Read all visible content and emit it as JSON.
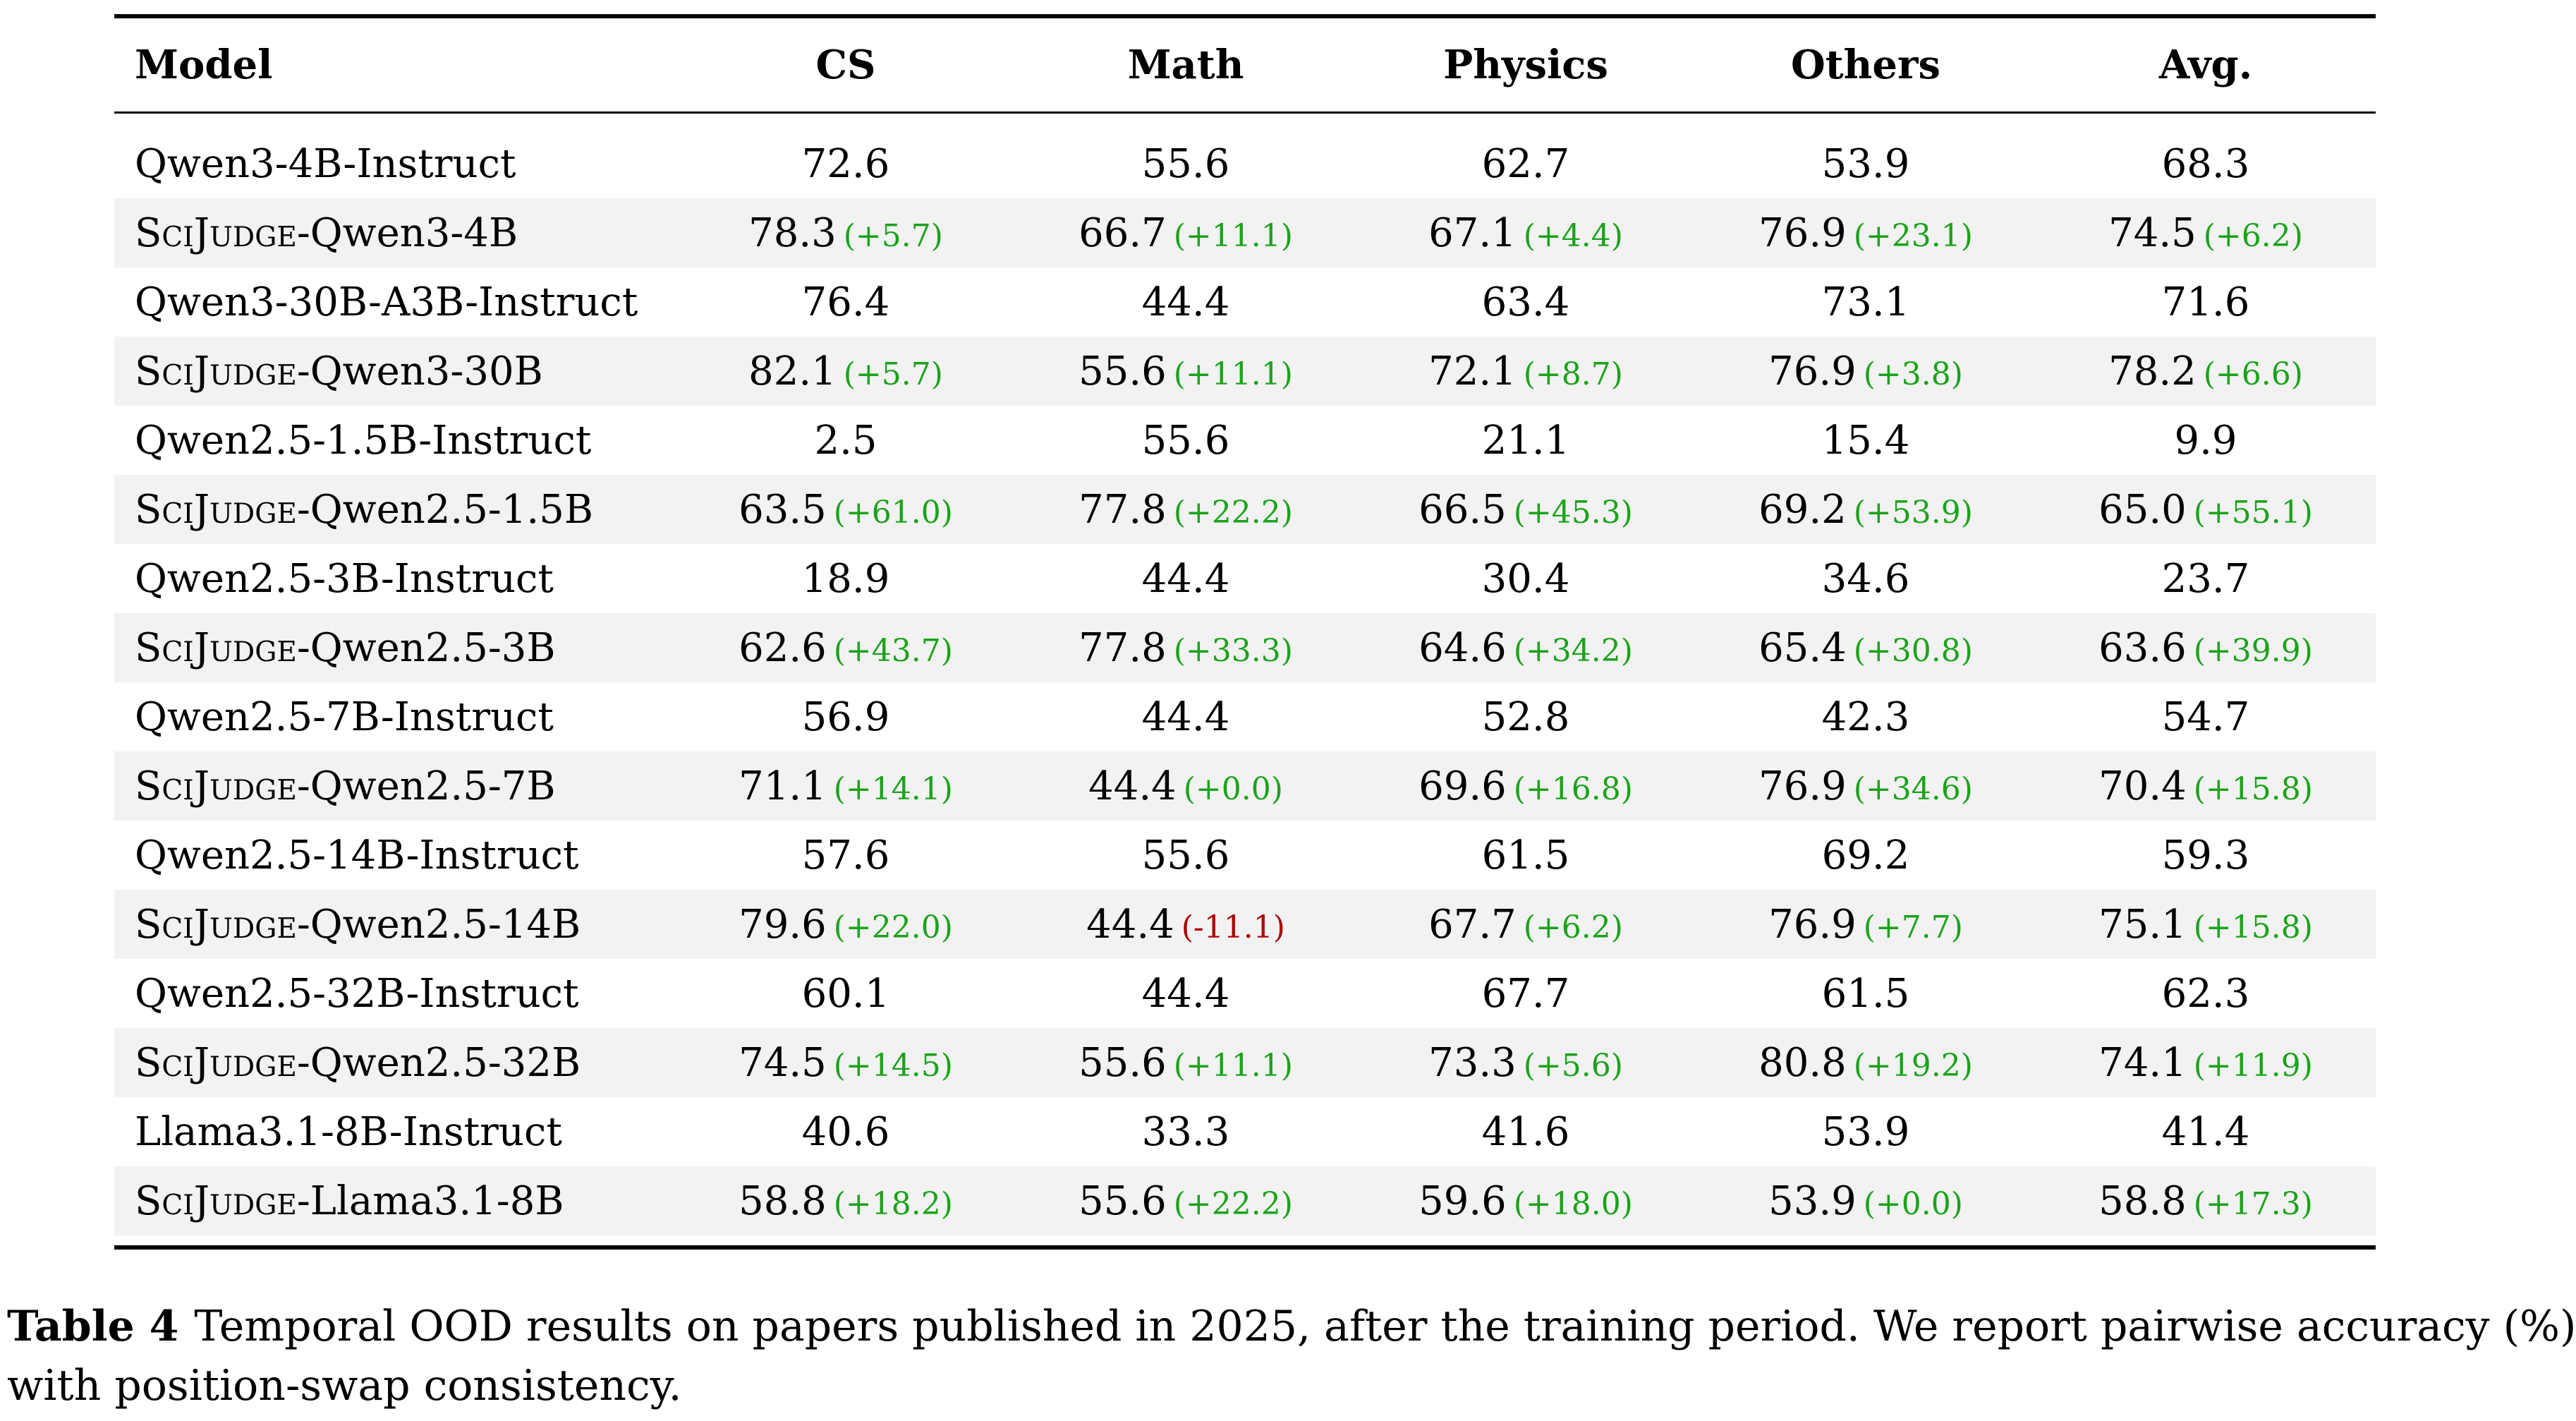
{
  "table": {
    "headers": [
      "Model",
      "CS",
      "Math",
      "Physics",
      "Others",
      "Avg."
    ],
    "rows": [
      {
        "brand": "",
        "model": "Qwen3-4B-Instruct",
        "values": [
          "72.6",
          "55.6",
          "62.7",
          "53.9",
          "68.3"
        ],
        "deltas": []
      },
      {
        "brand": "SciJudge",
        "model": "-Qwen3-4B",
        "values": [
          "78.3",
          "66.7",
          "67.1",
          "76.9",
          "74.5"
        ],
        "deltas": [
          "(+5.7)",
          "(+11.1)",
          "(+4.4)",
          "(+23.1)",
          "(+6.2)"
        ]
      },
      {
        "brand": "",
        "model": "Qwen3-30B-A3B-Instruct",
        "values": [
          "76.4",
          "44.4",
          "63.4",
          "73.1",
          "71.6"
        ],
        "deltas": []
      },
      {
        "brand": "SciJudge",
        "model": "-Qwen3-30B",
        "values": [
          "82.1",
          "55.6",
          "72.1",
          "76.9",
          "78.2"
        ],
        "deltas": [
          "(+5.7)",
          "(+11.1)",
          "(+8.7)",
          "(+3.8)",
          "(+6.6)"
        ]
      },
      {
        "brand": "",
        "model": "Qwen2.5-1.5B-Instruct",
        "values": [
          "2.5",
          "55.6",
          "21.1",
          "15.4",
          "9.9"
        ],
        "deltas": []
      },
      {
        "brand": "SciJudge",
        "model": "-Qwen2.5-1.5B",
        "values": [
          "63.5",
          "77.8",
          "66.5",
          "69.2",
          "65.0"
        ],
        "deltas": [
          "(+61.0)",
          "(+22.2)",
          "(+45.3)",
          "(+53.9)",
          "(+55.1)"
        ]
      },
      {
        "brand": "",
        "model": "Qwen2.5-3B-Instruct",
        "values": [
          "18.9",
          "44.4",
          "30.4",
          "34.6",
          "23.7"
        ],
        "deltas": []
      },
      {
        "brand": "SciJudge",
        "model": "-Qwen2.5-3B",
        "values": [
          "62.6",
          "77.8",
          "64.6",
          "65.4",
          "63.6"
        ],
        "deltas": [
          "(+43.7)",
          "(+33.3)",
          "(+34.2)",
          "(+30.8)",
          "(+39.9)"
        ]
      },
      {
        "brand": "",
        "model": "Qwen2.5-7B-Instruct",
        "values": [
          "56.9",
          "44.4",
          "52.8",
          "42.3",
          "54.7"
        ],
        "deltas": []
      },
      {
        "brand": "SciJudge",
        "model": "-Qwen2.5-7B",
        "values": [
          "71.1",
          "44.4",
          "69.6",
          "76.9",
          "70.4"
        ],
        "deltas": [
          "(+14.1)",
          "(+0.0)",
          "(+16.8)",
          "(+34.6)",
          "(+15.8)"
        ]
      },
      {
        "brand": "",
        "model": "Qwen2.5-14B-Instruct",
        "values": [
          "57.6",
          "55.6",
          "61.5",
          "69.2",
          "59.3"
        ],
        "deltas": []
      },
      {
        "brand": "SciJudge",
        "model": "-Qwen2.5-14B",
        "values": [
          "79.6",
          "44.4",
          "67.7",
          "76.9",
          "75.1"
        ],
        "deltas": [
          "(+22.0)",
          "(-11.1)",
          "(+6.2)",
          "(+7.7)",
          "(+15.8)"
        ]
      },
      {
        "brand": "",
        "model": "Qwen2.5-32B-Instruct",
        "values": [
          "60.1",
          "44.4",
          "67.7",
          "61.5",
          "62.3"
        ],
        "deltas": []
      },
      {
        "brand": "SciJudge",
        "model": "-Qwen2.5-32B",
        "values": [
          "74.5",
          "55.6",
          "73.3",
          "80.8",
          "74.1"
        ],
        "deltas": [
          "(+14.5)",
          "(+11.1)",
          "(+5.6)",
          "(+19.2)",
          "(+11.9)"
        ]
      },
      {
        "brand": "",
        "model": "Llama3.1-8B-Instruct",
        "values": [
          "40.6",
          "33.3",
          "41.6",
          "53.9",
          "41.4"
        ],
        "deltas": []
      },
      {
        "brand": "SciJudge",
        "model": "-Llama3.1-8B",
        "values": [
          "58.8",
          "55.6",
          "59.6",
          "53.9",
          "58.8"
        ],
        "deltas": [
          "(+18.2)",
          "(+22.2)",
          "(+18.0)",
          "(+0.0)",
          "(+17.3)"
        ]
      }
    ]
  },
  "caption": {
    "label": "Table 4",
    "line1": "Temporal OOD results on papers published in 2025, after the training period. We report pairwise accuracy (%)",
    "line2": "with position-swap consistency."
  },
  "colors": {
    "positive": "#1aa31a",
    "negative": "#b00000",
    "shade": "#f2f2f2"
  }
}
